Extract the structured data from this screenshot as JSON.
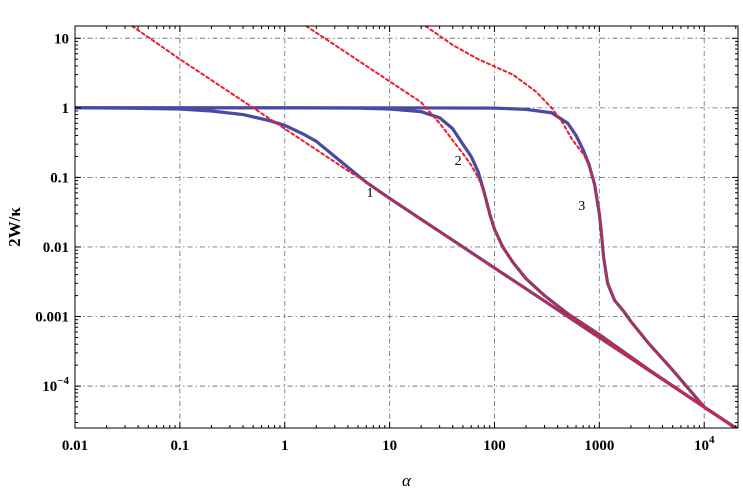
{
  "chart_data": {
    "type": "line",
    "title": "",
    "xlabel": "α",
    "ylabel": "2W/κ",
    "xscale": "log",
    "yscale": "log",
    "xlim": [
      0.01,
      21000
    ],
    "ylim": [
      2.5e-05,
      15
    ],
    "grid": true,
    "x_ticks": [
      {
        "value": 0.01,
        "label": "0.01"
      },
      {
        "value": 0.1,
        "label": "0.1"
      },
      {
        "value": 1,
        "label": "1"
      },
      {
        "value": 10,
        "label": "10"
      },
      {
        "value": 100,
        "label": "100"
      },
      {
        "value": 1000,
        "label": "1000"
      },
      {
        "value": 10000,
        "label": "10",
        "exp": "4"
      }
    ],
    "y_ticks": [
      {
        "value": 10,
        "label": "10"
      },
      {
        "value": 1,
        "label": "1"
      },
      {
        "value": 0.1,
        "label": "0.1"
      },
      {
        "value": 0.01,
        "label": "0.01"
      },
      {
        "value": 0.001,
        "label": "0.001"
      },
      {
        "value": 0.0001,
        "label": "10",
        "exp": "−4"
      }
    ],
    "curve_labels": [
      {
        "text": "1",
        "x": 6.5,
        "y": 0.052
      },
      {
        "text": "2",
        "x": 45,
        "y": 0.15
      },
      {
        "text": "3",
        "x": 680,
        "y": 0.034
      }
    ],
    "series": [
      {
        "color": "#4a4aa0",
        "style": "solid",
        "points": [
          [
            0.01,
            1.0
          ],
          [
            0.03,
            0.99
          ],
          [
            0.1,
            0.96
          ],
          [
            0.2,
            0.9
          ],
          [
            0.4,
            0.8
          ],
          [
            0.7,
            0.66
          ],
          [
            1,
            0.56
          ],
          [
            1.5,
            0.42
          ],
          [
            2,
            0.33
          ],
          [
            3,
            0.2
          ],
          [
            4,
            0.14
          ],
          [
            6,
            0.085
          ],
          [
            10,
            0.05
          ],
          [
            20,
            0.025
          ],
          [
            50,
            0.01
          ],
          [
            100,
            0.005
          ],
          [
            300,
            0.00167
          ],
          [
            1000,
            0.0005
          ],
          [
            3000,
            0.000167
          ],
          [
            10000,
            5e-05
          ],
          [
            21000,
            2.38e-05
          ]
        ]
      },
      {
        "color": "#4a4aa0",
        "style": "solid",
        "points": [
          [
            0.01,
            1.0
          ],
          [
            1,
            1.0
          ],
          [
            5,
            0.99
          ],
          [
            10,
            0.96
          ],
          [
            20,
            0.88
          ],
          [
            30,
            0.72
          ],
          [
            40,
            0.5
          ],
          [
            50,
            0.3
          ],
          [
            60,
            0.2
          ],
          [
            70,
            0.12
          ],
          [
            80,
            0.06
          ],
          [
            90,
            0.03
          ],
          [
            100,
            0.018
          ],
          [
            120,
            0.01
          ],
          [
            150,
            0.006
          ],
          [
            200,
            0.0035
          ],
          [
            300,
            0.002
          ],
          [
            500,
            0.0011
          ],
          [
            1000,
            0.00055
          ],
          [
            3000,
            0.00017
          ],
          [
            10000,
            5e-05
          ],
          [
            21000,
            2.38e-05
          ]
        ]
      },
      {
        "color": "#4a4aa0",
        "style": "solid",
        "points": [
          [
            0.01,
            1.0
          ],
          [
            10,
            1.0
          ],
          [
            100,
            0.99
          ],
          [
            200,
            0.95
          ],
          [
            350,
            0.85
          ],
          [
            500,
            0.6
          ],
          [
            600,
            0.4
          ],
          [
            700,
            0.25
          ],
          [
            800,
            0.15
          ],
          [
            900,
            0.08
          ],
          [
            1000,
            0.03
          ],
          [
            1050,
            0.015
          ],
          [
            1100,
            0.007
          ],
          [
            1200,
            0.003
          ],
          [
            1400,
            0.0017
          ],
          [
            1700,
            0.0012
          ],
          [
            2000,
            0.00085
          ],
          [
            3000,
            0.0004
          ],
          [
            5000,
            0.00017
          ],
          [
            10000,
            5e-05
          ],
          [
            21000,
            2.38e-05
          ]
        ]
      },
      {
        "color": "#e8202a",
        "style": "dashed",
        "points": [
          [
            0.035,
            15
          ],
          [
            0.1,
            5.0
          ],
          [
            0.2,
            2.5
          ],
          [
            0.5,
            1.0
          ],
          [
            1,
            0.5
          ],
          [
            2,
            0.25
          ],
          [
            4,
            0.125
          ],
          [
            6,
            0.085
          ],
          [
            10,
            0.05
          ],
          [
            20,
            0.025
          ],
          [
            50,
            0.01
          ],
          [
            100,
            0.005
          ],
          [
            300,
            0.00167
          ],
          [
            1000,
            0.0005
          ],
          [
            3000,
            0.000167
          ],
          [
            10000,
            5e-05
          ],
          [
            21000,
            2.38e-05
          ]
        ]
      },
      {
        "color": "#e8202a",
        "style": "dashed",
        "points": [
          [
            1.6,
            15
          ],
          [
            3,
            8
          ],
          [
            6,
            4
          ],
          [
            10,
            2.4
          ],
          [
            20,
            1.2
          ],
          [
            30,
            0.6
          ],
          [
            40,
            0.34
          ],
          [
            50,
            0.22
          ],
          [
            60,
            0.15
          ],
          [
            70,
            0.1
          ],
          [
            80,
            0.06
          ],
          [
            90,
            0.03
          ],
          [
            100,
            0.018
          ],
          [
            120,
            0.01
          ],
          [
            150,
            0.006
          ],
          [
            200,
            0.0035
          ],
          [
            300,
            0.002
          ],
          [
            500,
            0.0011
          ],
          [
            1000,
            0.00055
          ],
          [
            3000,
            0.00017
          ],
          [
            10000,
            5e-05
          ],
          [
            21000,
            2.38e-05
          ]
        ]
      },
      {
        "color": "#e8202a",
        "style": "dashed",
        "points": [
          [
            22,
            15
          ],
          [
            40,
            8
          ],
          [
            70,
            5
          ],
          [
            150,
            3
          ],
          [
            250,
            1.7
          ],
          [
            350,
            1.0
          ],
          [
            450,
            0.6
          ],
          [
            550,
            0.35
          ],
          [
            700,
            0.22
          ],
          [
            800,
            0.15
          ],
          [
            900,
            0.08
          ],
          [
            1000,
            0.03
          ],
          [
            1050,
            0.015
          ],
          [
            1100,
            0.007
          ],
          [
            1200,
            0.003
          ],
          [
            1400,
            0.0017
          ],
          [
            1700,
            0.0012
          ],
          [
            2000,
            0.00085
          ],
          [
            3000,
            0.0004
          ],
          [
            5000,
            0.00017
          ],
          [
            10000,
            5e-05
          ],
          [
            21000,
            2.38e-05
          ]
        ]
      }
    ]
  }
}
